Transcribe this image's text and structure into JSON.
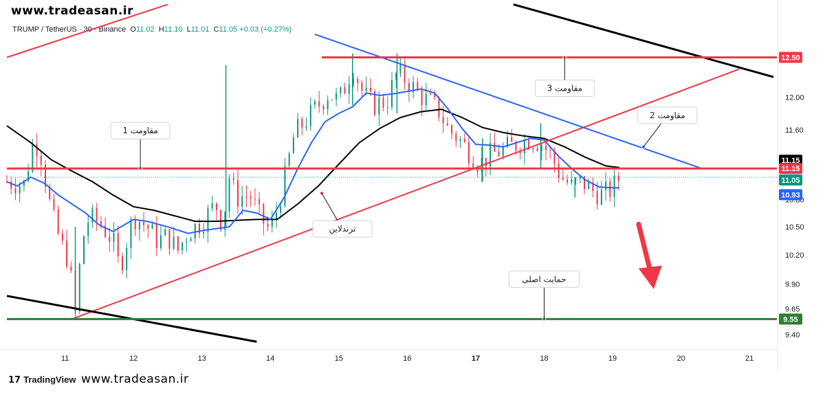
{
  "watermark": {
    "top": "www.tradeasan.ir",
    "bottom": "www.tradeasan.ir"
  },
  "branding": {
    "name": "TradingView",
    "mark": "17"
  },
  "legend": {
    "symbol": "TRUMP / TetherUS · 30 · Binance",
    "open_label": "O",
    "open": "11.02",
    "high_label": "H",
    "high": "11.10",
    "low_label": "L",
    "low": "11.01",
    "close_label": "C",
    "close": "11.05",
    "change": "+0.03 (+0.27%)"
  },
  "colors": {
    "up": "#089981",
    "down": "#f23645",
    "ema_fast": "#2962ff",
    "ema_slow": "#000000",
    "resistance": "#f23645",
    "support": "#2e7d32",
    "trendline": "#f23645",
    "channel": "#000000",
    "downtrend": "#2962ff",
    "arrow": "#f23645"
  },
  "icons": {
    "tradingview": "tradingview-logo-icon",
    "arrow": "down-arrow-icon"
  },
  "chart_data": {
    "type": "candlestick",
    "title": "TRUMP / TetherUS",
    "timeframe": "30",
    "exchange": "Binance",
    "x_ticks": [
      "11",
      "12",
      "13",
      "14",
      "15",
      "16",
      "17",
      "18",
      "19",
      "20",
      "21"
    ],
    "x_tick_days": [
      11,
      12,
      13,
      14,
      15,
      16,
      17,
      18,
      19,
      20,
      21
    ],
    "xlim": [
      10.15,
      21.4
    ],
    "y_ticks": [
      "12.00",
      "11.60",
      "10.80",
      "10.50",
      "10.20",
      "9.90",
      "9.65",
      "9.40"
    ],
    "y_tick_values": [
      12.0,
      11.6,
      10.8,
      10.5,
      10.2,
      9.9,
      9.65,
      9.4
    ],
    "y_scale": "log",
    "ylim": [
      9.26,
      13.0
    ],
    "price_tags": [
      {
        "value": "12.50",
        "v": 12.5,
        "color": "#f23645"
      },
      {
        "value": "11.15",
        "v": 11.15,
        "color": "#000000",
        "offset": -12
      },
      {
        "value": "11.15",
        "v": 11.15,
        "color": "#f23645",
        "offset": 0
      },
      {
        "value": "11.05",
        "v": 11.05,
        "color": "#089981",
        "offset": 4
      },
      {
        "value": "10.93",
        "v": 10.93,
        "color": "#2962ff",
        "offset": 10
      },
      {
        "value": "9.55",
        "v": 9.55,
        "color": "#2e7d32"
      }
    ],
    "levels": [
      {
        "name": "مقاومت 3",
        "value": 12.5,
        "from_day": 14.75,
        "to_day": 21.3,
        "color": "#f23645",
        "label_day": 15.3
      },
      {
        "name": "مقاومت 1",
        "value": 11.15,
        "from_day": 10.15,
        "to_day": 21.3,
        "color": "#f23645",
        "label_day": 12.15
      },
      {
        "name": "حمایت اصلی",
        "value": 9.55,
        "from_day": 10.15,
        "to_day": 21.3,
        "color": "#2e7d32",
        "label_day": 18.0
      }
    ],
    "lines": [
      {
        "name": "ترندلاین",
        "from": [
          11.1,
          9.55
        ],
        "to": [
          20.85,
          12.35
        ],
        "color": "#f23645",
        "label_at": [
          14.75,
          10.87
        ],
        "label_offset": [
          30,
          52
        ]
      },
      {
        "name": "مقاومت 2",
        "from": [
          14.65,
          12.8
        ],
        "to": [
          20.3,
          11.15
        ],
        "color": "#2962ff",
        "label_at": [
          19.45,
          11.4
        ],
        "label_offset": [
          35,
          -46
        ]
      },
      {
        "name": "",
        "from": [
          10.15,
          12.5
        ],
        "to": [
          12.5,
          13.2
        ],
        "color": "#f23645"
      },
      {
        "name": "",
        "from": [
          10.15,
          9.78
        ],
        "to": [
          13.8,
          9.33
        ],
        "color": "#000000"
      },
      {
        "name": "",
        "from": [
          17.55,
          13.2
        ],
        "to": [
          21.35,
          12.25
        ],
        "color": "#000000"
      }
    ],
    "ema_slow": [
      [
        10.15,
        11.65
      ],
      [
        10.5,
        11.45
      ],
      [
        10.8,
        11.25
      ],
      [
        11.1,
        11.12
      ],
      [
        11.4,
        11.0
      ],
      [
        11.7,
        10.85
      ],
      [
        12.0,
        10.72
      ],
      [
        12.3,
        10.68
      ],
      [
        12.6,
        10.62
      ],
      [
        12.9,
        10.56
      ],
      [
        13.2,
        10.56
      ],
      [
        13.5,
        10.57
      ],
      [
        13.8,
        10.58
      ],
      [
        14.1,
        10.58
      ],
      [
        14.4,
        10.75
      ],
      [
        14.7,
        10.95
      ],
      [
        15.0,
        11.2
      ],
      [
        15.3,
        11.45
      ],
      [
        15.6,
        11.62
      ],
      [
        15.9,
        11.75
      ],
      [
        16.2,
        11.82
      ],
      [
        16.5,
        11.85
      ],
      [
        16.8,
        11.75
      ],
      [
        17.1,
        11.63
      ],
      [
        17.4,
        11.57
      ],
      [
        17.7,
        11.53
      ],
      [
        18.0,
        11.5
      ],
      [
        18.3,
        11.4
      ],
      [
        18.6,
        11.28
      ],
      [
        18.9,
        11.18
      ],
      [
        19.1,
        11.16
      ]
    ],
    "ema_fast": [
      [
        10.15,
        11.0
      ],
      [
        10.3,
        10.95
      ],
      [
        10.5,
        11.05
      ],
      [
        10.7,
        10.98
      ],
      [
        10.9,
        10.85
      ],
      [
        11.1,
        10.75
      ],
      [
        11.3,
        10.65
      ],
      [
        11.5,
        10.52
      ],
      [
        11.7,
        10.45
      ],
      [
        12.0,
        10.58
      ],
      [
        12.2,
        10.56
      ],
      [
        12.5,
        10.5
      ],
      [
        12.8,
        10.43
      ],
      [
        13.0,
        10.46
      ],
      [
        13.2,
        10.48
      ],
      [
        13.4,
        10.5
      ],
      [
        13.6,
        10.68
      ],
      [
        13.8,
        10.65
      ],
      [
        14.0,
        10.58
      ],
      [
        14.2,
        10.82
      ],
      [
        14.4,
        11.15
      ],
      [
        14.6,
        11.45
      ],
      [
        14.8,
        11.7
      ],
      [
        15.0,
        11.8
      ],
      [
        15.2,
        11.88
      ],
      [
        15.4,
        12.05
      ],
      [
        15.6,
        12.02
      ],
      [
        15.8,
        12.04
      ],
      [
        16.0,
        12.07
      ],
      [
        16.2,
        12.1
      ],
      [
        16.4,
        12.05
      ],
      [
        16.6,
        11.85
      ],
      [
        16.8,
        11.62
      ],
      [
        17.0,
        11.43
      ],
      [
        17.2,
        11.42
      ],
      [
        17.4,
        11.4
      ],
      [
        17.6,
        11.45
      ],
      [
        17.8,
        11.5
      ],
      [
        18.0,
        11.48
      ],
      [
        18.2,
        11.3
      ],
      [
        18.4,
        11.15
      ],
      [
        18.6,
        11.02
      ],
      [
        18.8,
        10.94
      ],
      [
        19.0,
        10.93
      ],
      [
        19.1,
        10.93
      ]
    ],
    "candles_path": [
      [
        10.15,
        11.0
      ],
      [
        10.4,
        10.97
      ],
      [
        10.55,
        11.5
      ],
      [
        10.65,
        11.3
      ],
      [
        10.8,
        10.65
      ],
      [
        10.95,
        10.3
      ],
      [
        11.05,
        10.15
      ],
      [
        11.15,
        9.6
      ],
      [
        11.25,
        10.35
      ],
      [
        11.35,
        10.6
      ],
      [
        11.5,
        10.55
      ],
      [
        11.7,
        10.35
      ],
      [
        11.8,
        10.05
      ],
      [
        11.9,
        10.35
      ],
      [
        12.0,
        10.62
      ],
      [
        12.2,
        10.5
      ],
      [
        12.35,
        10.35
      ],
      [
        12.5,
        10.4
      ],
      [
        12.65,
        10.25
      ],
      [
        12.8,
        10.45
      ],
      [
        13.0,
        10.55
      ],
      [
        13.2,
        10.75
      ],
      [
        13.3,
        10.52
      ],
      [
        13.4,
        11.05
      ],
      [
        13.5,
        10.82
      ],
      [
        13.7,
        10.85
      ],
      [
        13.85,
        10.6
      ],
      [
        14.0,
        10.45
      ],
      [
        14.1,
        10.7
      ],
      [
        14.2,
        11.0
      ],
      [
        14.35,
        11.55
      ],
      [
        14.5,
        11.7
      ],
      [
        14.7,
        11.9
      ],
      [
        14.85,
        12.05
      ],
      [
        15.0,
        11.95
      ],
      [
        15.1,
        12.15
      ],
      [
        15.2,
        12.4
      ],
      [
        15.35,
        12.05
      ],
      [
        15.5,
        11.9
      ],
      [
        15.7,
        11.95
      ],
      [
        15.85,
        12.3
      ],
      [
        16.0,
        12.2
      ],
      [
        16.15,
        12.05
      ],
      [
        16.3,
        11.95
      ],
      [
        16.45,
        11.85
      ],
      [
        16.6,
        11.6
      ],
      [
        16.75,
        11.5
      ],
      [
        16.9,
        11.35
      ],
      [
        17.05,
        11.2
      ],
      [
        17.2,
        11.3
      ],
      [
        17.35,
        11.35
      ],
      [
        17.5,
        11.4
      ],
      [
        17.65,
        11.45
      ],
      [
        17.8,
        11.5
      ],
      [
        17.95,
        11.45
      ],
      [
        18.1,
        11.3
      ],
      [
        18.25,
        11.05
      ],
      [
        18.4,
        10.95
      ],
      [
        18.55,
        11.0
      ],
      [
        18.7,
        10.9
      ],
      [
        18.85,
        10.85
      ],
      [
        19.0,
        10.92
      ],
      [
        19.1,
        11.05
      ]
    ],
    "spikes": [
      [
        11.15,
        9.6,
        10.5
      ],
      [
        13.35,
        10.5,
        12.4
      ],
      [
        15.2,
        11.9,
        12.55
      ],
      [
        15.85,
        11.8,
        12.55
      ],
      [
        17.1,
        11.0,
        11.5
      ],
      [
        17.95,
        11.15,
        11.68
      ],
      [
        18.45,
        10.82,
        11.05
      ]
    ],
    "arrow": {
      "from": [
        19.38,
        10.53
      ],
      "to": [
        19.6,
        9.85
      ]
    }
  }
}
